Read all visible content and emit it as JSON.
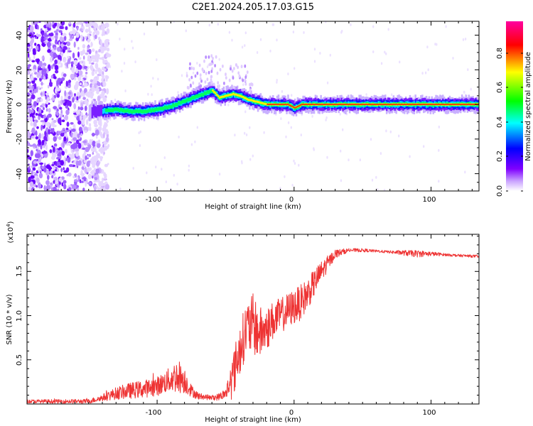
{
  "title": "C2E1.2024.205.17.03.G15",
  "chart_data": [
    {
      "type": "heatmap",
      "xlabel": "Height of straight line (km)",
      "ylabel": "Frequency (Hz)",
      "xlim": [
        -195,
        135
      ],
      "ylim": [
        -50,
        48
      ],
      "xticks": [
        -100,
        0,
        100
      ],
      "yticks": [
        -40,
        -20,
        0,
        20,
        40
      ],
      "colorbar": {
        "label": "Normalized spectral amplitude",
        "range": [
          0,
          1
        ],
        "ticks": [
          "0.0",
          "0.2",
          "0.4",
          "0.6",
          "0.8"
        ],
        "colormap": [
          "#ffffff",
          "#8000ff",
          "#0000ff",
          "#00ffff",
          "#00ff00",
          "#ffff00",
          "#ff0000",
          "#ff00a0"
        ]
      },
      "ridge": {
        "x": [
          -143,
          -130,
          -120,
          -110,
          -100,
          -90,
          -80,
          -70,
          -60,
          -55,
          -50,
          -45,
          -40,
          -35,
          -30,
          -25,
          -20,
          -15,
          -10,
          -5,
          0,
          5,
          10,
          20,
          40,
          60,
          80,
          100,
          120,
          135
        ],
        "y": [
          -4,
          -3,
          -4,
          -4,
          -3,
          -1,
          2,
          5,
          8,
          4,
          5,
          6,
          5,
          3,
          2,
          1,
          0,
          0,
          0,
          0,
          -2,
          0,
          0,
          0,
          0,
          0,
          0,
          0,
          0,
          0
        ]
      }
    },
    {
      "type": "line",
      "xlabel": "Height of straight line (km)",
      "ylabel": "SNR (10 * v/v)",
      "scale_label": "(x10",
      "scale_exp": "4",
      "xlim": [
        -195,
        135
      ],
      "ylim": [
        0,
        19200
      ],
      "xticks": [
        -100,
        0,
        100
      ],
      "yticks": [
        5000,
        10000,
        15000
      ],
      "ytick_labels": [
        "0.5",
        "1.0",
        "1.5"
      ],
      "color": "#ee3333",
      "envelope": {
        "x": [
          -195,
          -150,
          -140,
          -130,
          -120,
          -110,
          -100,
          -95,
          -90,
          -85,
          -80,
          -75,
          -70,
          -65,
          -60,
          -55,
          -50,
          -45,
          -40,
          -35,
          -30,
          -25,
          -20,
          -15,
          -10,
          -5,
          0,
          5,
          10,
          20,
          30,
          40,
          50,
          60,
          70,
          80,
          90,
          100,
          110,
          120,
          135
        ],
        "mean": [
          300,
          300,
          700,
          1200,
          1500,
          1700,
          2000,
          2400,
          2800,
          3200,
          2700,
          1500,
          900,
          800,
          700,
          800,
          1200,
          3000,
          6000,
          8500,
          9000,
          8000,
          8500,
          9500,
          10000,
          10500,
          11000,
          11500,
          12500,
          15000,
          17000,
          17400,
          17400,
          17300,
          17200,
          17100,
          17000,
          17000,
          16900,
          16800,
          16700
        ],
        "noise": [
          200,
          250,
          400,
          700,
          900,
          1000,
          1100,
          1200,
          1500,
          2000,
          1500,
          700,
          400,
          300,
          300,
          400,
          600,
          2500,
          3000,
          3000,
          3500,
          3000,
          2500,
          2200,
          2000,
          2000,
          2000,
          2000,
          1800,
          1200,
          500,
          200,
          200,
          150,
          150,
          300,
          400,
          250,
          150,
          150,
          150
        ]
      }
    }
  ]
}
